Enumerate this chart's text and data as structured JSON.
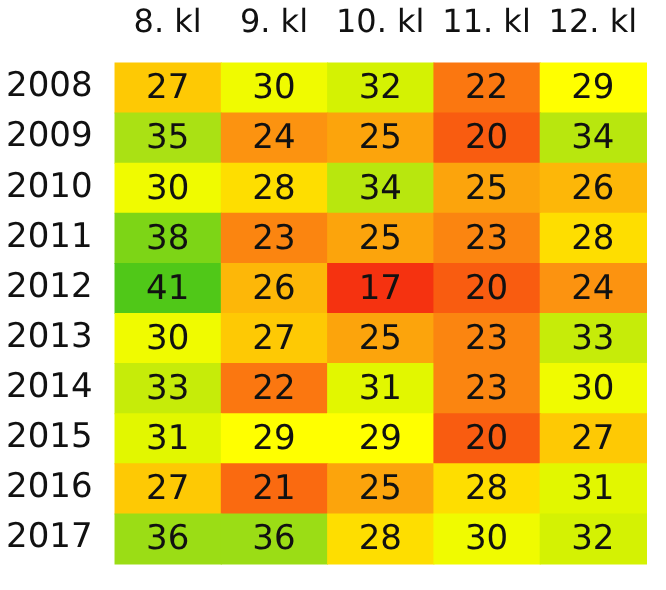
{
  "chart_data": {
    "type": "heatmap",
    "categories": [
      "8. kl",
      "9. kl",
      "10. kl",
      "11. kl",
      "12. kl"
    ],
    "y_categories": [
      "2008",
      "2009",
      "2010",
      "2011",
      "2012",
      "2013",
      "2014",
      "2015",
      "2016",
      "2017"
    ],
    "cells": [
      [
        27,
        30,
        32,
        22,
        29
      ],
      [
        35,
        24,
        25,
        20,
        34
      ],
      [
        30,
        28,
        34,
        25,
        26
      ],
      [
        38,
        23,
        25,
        23,
        28
      ],
      [
        41,
        26,
        17,
        20,
        24
      ],
      [
        30,
        27,
        25,
        23,
        33
      ],
      [
        33,
        22,
        31,
        23,
        30
      ],
      [
        31,
        29,
        29,
        20,
        27
      ],
      [
        27,
        21,
        25,
        28,
        31
      ],
      [
        36,
        36,
        28,
        30,
        32
      ]
    ],
    "data_labels": true
  }
}
